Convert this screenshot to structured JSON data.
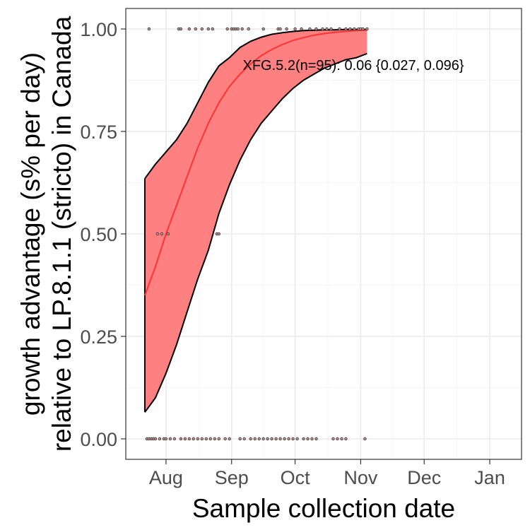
{
  "chart_data": {
    "type": "line",
    "title": "",
    "xlabel": "Sample collection date",
    "ylabel_line1": "growth advantage (s% per day)",
    "ylabel_line2": "relative to LP.8.1.1 (stricto) in Canada",
    "x_tick_labels": [
      "Aug",
      "Sep",
      "Oct",
      "Nov",
      "Dec",
      "Jan"
    ],
    "x_tick_dates": [
      "2025-08-01",
      "2025-09-01",
      "2025-10-01",
      "2025-11-01",
      "2025-12-01",
      "2026-01-01"
    ],
    "x_range": [
      "2025-07-13",
      "2026-01-16"
    ],
    "y_tick_labels": [
      "0.00",
      "0.25",
      "0.50",
      "0.75",
      "1.00"
    ],
    "y_ticks": [
      0,
      0.25,
      0.5,
      0.75,
      1.0
    ],
    "ylim": [
      -0.05,
      1.05
    ],
    "grid": true,
    "annotation": "XFG.5.2(n=95): 0.06 {0.027, 0.096}",
    "series": [
      {
        "name": "",
        "role": "fit",
        "color": "#ff3333",
        "x": [
          "2025-07-22",
          "2025-07-27",
          "2025-08-01",
          "2025-08-06",
          "2025-08-11",
          "2025-08-16",
          "2025-08-21",
          "2025-08-26",
          "2025-08-31",
          "2025-09-05",
          "2025-09-10",
          "2025-09-15",
          "2025-09-20",
          "2025-09-25",
          "2025-09-30",
          "2025-10-05",
          "2025-10-10",
          "2025-10-15",
          "2025-10-20",
          "2025-10-25",
          "2025-10-30",
          "2025-11-04"
        ],
        "y": [
          0.35,
          0.42,
          0.5,
          0.57,
          0.64,
          0.71,
          0.77,
          0.82,
          0.86,
          0.89,
          0.915,
          0.935,
          0.95,
          0.962,
          0.972,
          0.979,
          0.985,
          0.989,
          0.992,
          0.994,
          0.996,
          0.997
        ]
      },
      {
        "name": "",
        "role": "ci-upper",
        "color": "#000000",
        "x": [
          "2025-07-22",
          "2025-07-27",
          "2025-08-01",
          "2025-08-06",
          "2025-08-11",
          "2025-08-16",
          "2025-08-21",
          "2025-08-26",
          "2025-08-31",
          "2025-09-05",
          "2025-09-10",
          "2025-09-15",
          "2025-09-20",
          "2025-09-25",
          "2025-09-30",
          "2025-10-05",
          "2025-10-10",
          "2025-10-15",
          "2025-10-20",
          "2025-10-25",
          "2025-10-30",
          "2025-11-04"
        ],
        "y": [
          0.635,
          0.67,
          0.7,
          0.73,
          0.77,
          0.82,
          0.87,
          0.91,
          0.93,
          0.955,
          0.97,
          0.98,
          0.987,
          0.991,
          0.994,
          0.996,
          0.997,
          0.998,
          0.998,
          0.999,
          0.999,
          0.999
        ]
      },
      {
        "name": "",
        "role": "ci-lower",
        "color": "#000000",
        "x": [
          "2025-07-22",
          "2025-07-27",
          "2025-08-01",
          "2025-08-06",
          "2025-08-11",
          "2025-08-16",
          "2025-08-21",
          "2025-08-26",
          "2025-08-31",
          "2025-09-05",
          "2025-09-10",
          "2025-09-15",
          "2025-09-20",
          "2025-09-25",
          "2025-09-30",
          "2025-10-05",
          "2025-10-10",
          "2025-10-15",
          "2025-10-20",
          "2025-10-25",
          "2025-10-30",
          "2025-11-04"
        ],
        "y": [
          0.065,
          0.1,
          0.16,
          0.23,
          0.31,
          0.39,
          0.46,
          0.55,
          0.62,
          0.68,
          0.73,
          0.77,
          0.8,
          0.83,
          0.855,
          0.875,
          0.89,
          0.905,
          0.915,
          0.925,
          0.93,
          0.94
        ]
      },
      {
        "name": "",
        "role": "observations",
        "color": "#000000",
        "x": [
          "2025-07-23",
          "2025-07-24",
          "2025-07-25",
          "2025-07-26",
          "2025-07-27",
          "2025-07-29",
          "2025-07-31",
          "2025-08-01",
          "2025-08-03",
          "2025-08-05",
          "2025-08-08",
          "2025-08-10",
          "2025-08-12",
          "2025-08-14",
          "2025-08-16",
          "2025-08-18",
          "2025-08-20",
          "2025-08-22",
          "2025-08-24",
          "2025-08-26",
          "2025-08-29",
          "2025-08-31",
          "2025-09-05",
          "2025-09-07",
          "2025-09-10",
          "2025-09-12",
          "2025-09-14",
          "2025-09-16",
          "2025-09-18",
          "2025-09-20",
          "2025-09-22",
          "2025-09-24",
          "2025-09-26",
          "2025-09-28",
          "2025-09-30",
          "2025-10-02",
          "2025-10-05",
          "2025-10-07",
          "2025-10-09",
          "2025-10-11",
          "2025-10-19",
          "2025-10-21",
          "2025-10-23",
          "2025-10-25",
          "2025-11-03",
          "2025-07-28",
          "2025-07-30",
          "2025-08-02",
          "2025-08-25",
          "2025-08-26",
          "2025-07-24",
          "2025-08-07",
          "2025-08-08",
          "2025-08-12",
          "2025-08-15",
          "2025-08-18",
          "2025-08-21",
          "2025-08-23",
          "2025-08-30",
          "2025-09-01",
          "2025-09-02",
          "2025-09-03",
          "2025-09-04",
          "2025-09-06",
          "2025-09-09",
          "2025-09-16",
          "2025-09-23",
          "2025-09-24",
          "2025-09-27",
          "2025-10-01",
          "2025-10-04",
          "2025-10-08",
          "2025-10-11",
          "2025-10-14",
          "2025-10-16",
          "2025-10-18",
          "2025-10-22",
          "2025-10-25",
          "2025-10-27",
          "2025-10-29",
          "2025-10-31",
          "2025-11-01",
          "2025-11-02",
          "2025-11-04"
        ],
        "y": [
          0,
          0,
          0,
          0,
          0,
          0,
          0,
          0,
          0,
          0,
          0,
          0,
          0,
          0,
          0,
          0,
          0,
          0,
          0,
          0,
          0,
          0,
          0,
          0,
          0,
          0,
          0,
          0,
          0,
          0,
          0,
          0,
          0,
          0,
          0,
          0,
          0,
          0,
          0,
          0,
          0,
          0,
          0,
          0,
          0,
          0.5,
          0.5,
          0.5,
          0.5,
          0.5,
          1,
          1,
          1,
          1,
          1,
          1,
          1,
          1,
          1,
          1,
          1,
          1,
          1,
          1,
          1,
          1,
          1,
          1,
          1,
          1,
          1,
          1,
          1,
          1,
          1,
          1,
          1,
          1,
          1,
          1,
          1,
          1,
          1,
          1
        ]
      }
    ]
  },
  "colors": {
    "ribbon_fill": "#ff8080",
    "fit_line": "#ff3333",
    "ci_line": "#000000",
    "grid_major": "#ebebeb",
    "grid_minor": "#f5f5f5",
    "panel_border": "#333333",
    "point_stroke": "#333333",
    "point_fill": "#c89090"
  }
}
